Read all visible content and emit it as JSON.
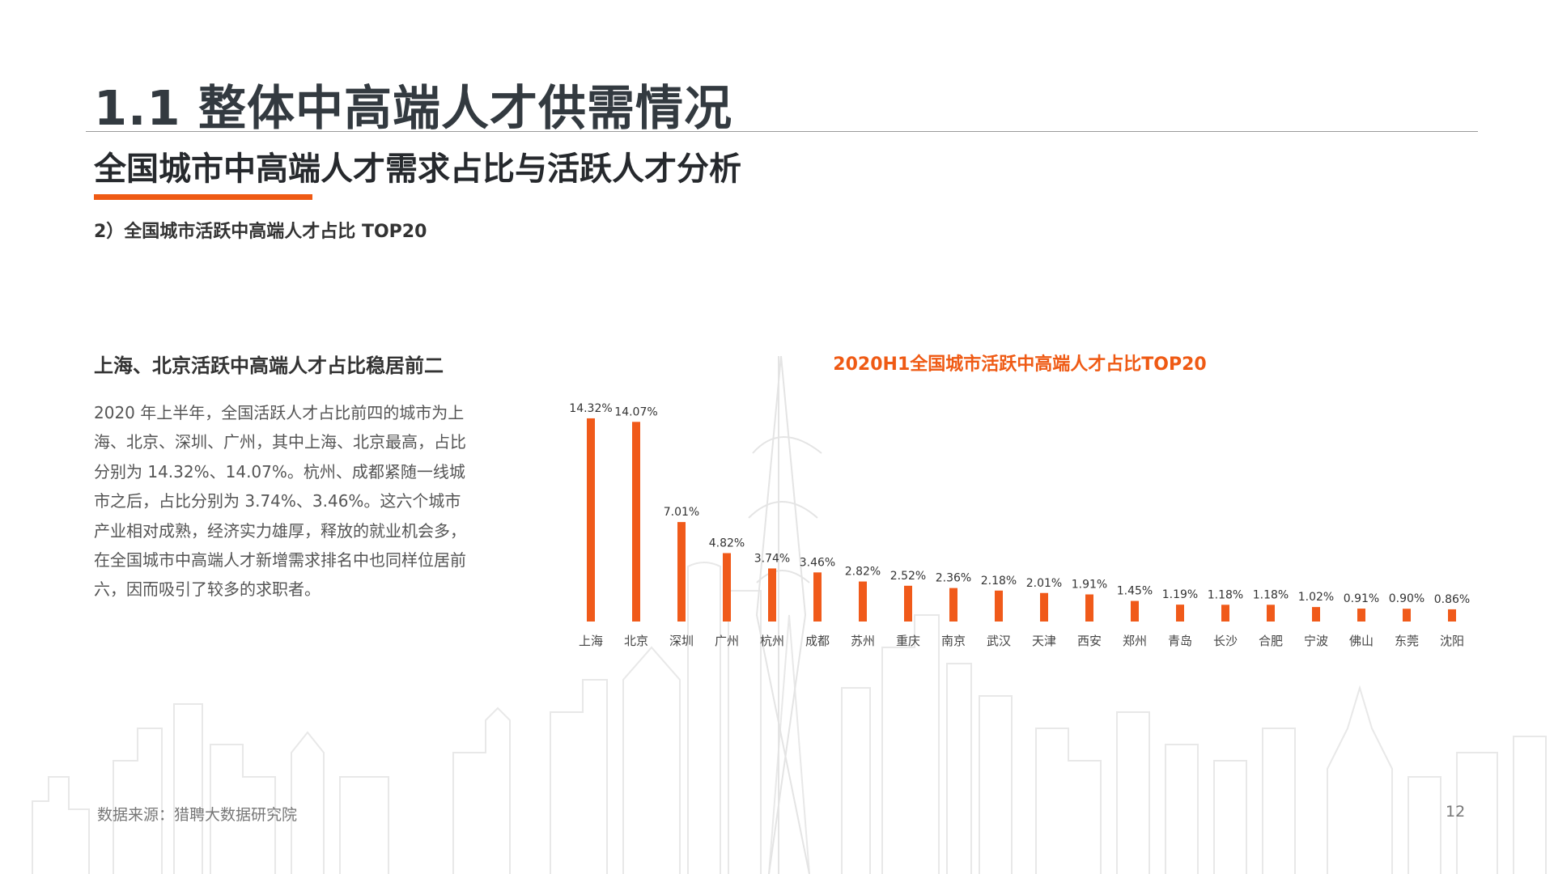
{
  "header": {
    "main_title": "1.1 整体中高端人才供需情况",
    "section_title": "全国城市中高端人才需求占比与活跃人才分析",
    "sub_title": "2）全国城市活跃中高端人才占比 TOP20"
  },
  "left": {
    "heading": "上海、北京活跃中高端人才占比稳居前二",
    "paragraph": "2020 年上半年，全国活跃人才占比前四的城市为上海、北京、深圳、广州，其中上海、北京最高，占比分别为 14.32%、14.07%。杭州、成都紧随一线城市之后，占比分别为 3.74%、3.46%。这六个城市产业相对成熟，经济实力雄厚，释放的就业机会多，在全国城市中高端人才新增需求排名中也同样位居前六，因而吸引了较多的求职者。"
  },
  "footer": {
    "source": "数据来源：猎聘大数据研究院",
    "page_number": "12"
  },
  "colors": {
    "accent": "#ef5a14",
    "bar": "#f05a1a",
    "title_text": "#333a40"
  },
  "chart_data": {
    "type": "bar",
    "title": "2020H1全国城市活跃中高端人才占比TOP20",
    "categories": [
      "上海",
      "北京",
      "深圳",
      "广州",
      "杭州",
      "成都",
      "苏州",
      "重庆",
      "南京",
      "武汉",
      "天津",
      "西安",
      "郑州",
      "青岛",
      "长沙",
      "合肥",
      "宁波",
      "佛山",
      "东莞",
      "沈阳"
    ],
    "values": [
      14.32,
      14.07,
      7.01,
      4.82,
      3.74,
      3.46,
      2.82,
      2.52,
      2.36,
      2.18,
      2.01,
      1.91,
      1.45,
      1.19,
      1.18,
      1.18,
      1.02,
      0.91,
      0.9,
      0.86
    ],
    "value_labels": [
      "14.32%",
      "14.07%",
      "7.01%",
      "4.82%",
      "3.74%",
      "3.46%",
      "2.82%",
      "2.52%",
      "2.36%",
      "2.18%",
      "2.01%",
      "1.91%",
      "1.45%",
      "1.19%",
      "1.18%",
      "1.18%",
      "1.02%",
      "0.91%",
      "0.90%",
      "0.86%"
    ],
    "xlabel": "",
    "ylabel": "",
    "ylim": [
      0,
      15
    ],
    "grid": false,
    "legend": "none"
  }
}
